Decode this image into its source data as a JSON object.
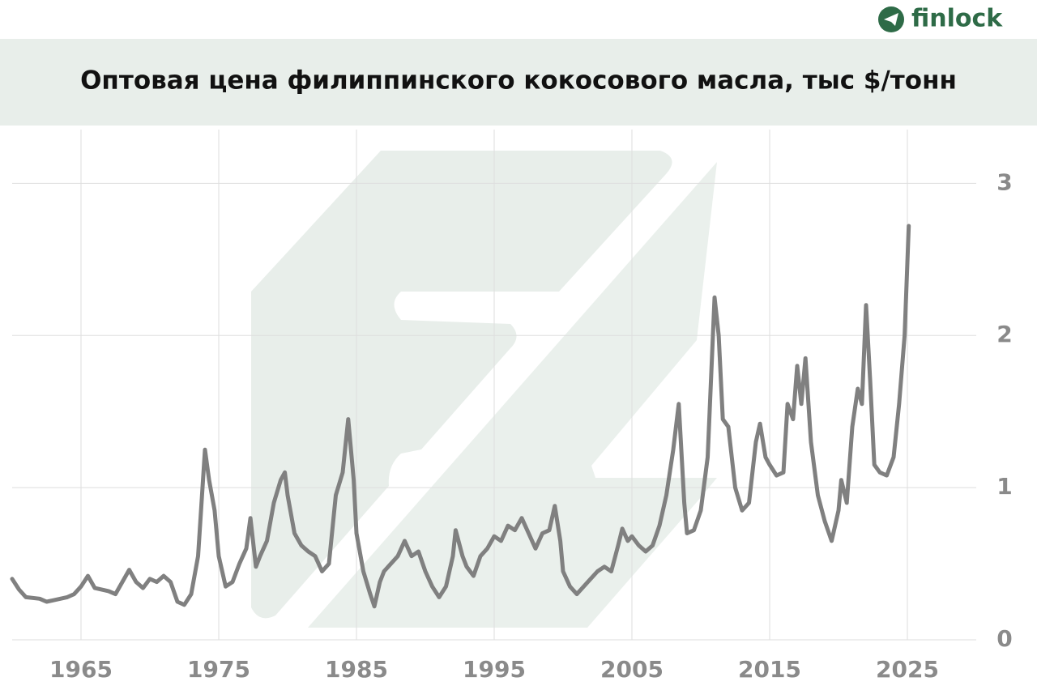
{
  "brand": "finlock",
  "chart_data": {
    "type": "line",
    "title": "Оптовая цена филиппинского кокосового масла, тыс $/тонн",
    "x": [
      1960.0,
      1960.5,
      1961,
      1962,
      1962.5,
      1963,
      1964,
      1964.5,
      1965,
      1965.5,
      1966,
      1967,
      1967.5,
      1968,
      1968.5,
      1969,
      1969.5,
      1970,
      1970.5,
      1971,
      1971.5,
      1972,
      1972.5,
      1973,
      1973.5,
      1974,
      1974.3,
      1974.7,
      1975,
      1975.5,
      1976,
      1976.5,
      1977,
      1977.3,
      1977.7,
      1978,
      1978.5,
      1979,
      1979.5,
      1979.8,
      1980,
      1980.5,
      1981,
      1981.5,
      1982,
      1982.5,
      1983,
      1983.5,
      1984,
      1984.4,
      1984.8,
      1985,
      1985.5,
      1986,
      1986.3,
      1986.7,
      1987,
      1987.5,
      1988,
      1988.5,
      1989,
      1989.5,
      1990,
      1990.5,
      1991,
      1991.5,
      1992,
      1992.2,
      1992.7,
      1993,
      1993.5,
      1994,
      1994.5,
      1995,
      1995.5,
      1996,
      1996.5,
      1997,
      1997.5,
      1998,
      1998.5,
      1999,
      1999.4,
      1999.8,
      2000,
      2000.5,
      2001,
      2001.5,
      2002,
      2002.5,
      2003,
      2003.5,
      2004,
      2004.3,
      2004.7,
      2005,
      2005.5,
      2006,
      2006.5,
      2007,
      2007.5,
      2008,
      2008.4,
      2008.8,
      2009,
      2009.5,
      2010,
      2010.5,
      2011,
      2011.3,
      2011.6,
      2012,
      2012.5,
      2013,
      2013.5,
      2014,
      2014.3,
      2014.7,
      2015,
      2015.5,
      2016,
      2016.3,
      2016.7,
      2017,
      2017.3,
      2017.6,
      2018,
      2018.5,
      2019,
      2019.5,
      2020,
      2020.2,
      2020.6,
      2021,
      2021.4,
      2021.7,
      2022,
      2022.3,
      2022.6,
      2023,
      2023.5,
      2024,
      2024.4,
      2024.8,
      2025.1
    ],
    "series": [
      {
        "color": "#808080",
        "values": [
          0.4,
          0.33,
          0.28,
          0.27,
          0.25,
          0.26,
          0.28,
          0.3,
          0.35,
          0.42,
          0.34,
          0.32,
          0.3,
          0.38,
          0.46,
          0.38,
          0.34,
          0.4,
          0.38,
          0.42,
          0.38,
          0.25,
          0.23,
          0.3,
          0.55,
          1.25,
          1.05,
          0.85,
          0.55,
          0.35,
          0.38,
          0.5,
          0.6,
          0.8,
          0.48,
          0.55,
          0.65,
          0.9,
          1.05,
          1.1,
          0.95,
          0.7,
          0.62,
          0.58,
          0.55,
          0.45,
          0.5,
          0.95,
          1.1,
          1.45,
          1.05,
          0.7,
          0.45,
          0.3,
          0.22,
          0.38,
          0.45,
          0.5,
          0.55,
          0.65,
          0.55,
          0.58,
          0.45,
          0.35,
          0.28,
          0.35,
          0.55,
          0.72,
          0.55,
          0.48,
          0.42,
          0.55,
          0.6,
          0.68,
          0.65,
          0.75,
          0.72,
          0.8,
          0.7,
          0.6,
          0.7,
          0.72,
          0.88,
          0.65,
          0.45,
          0.35,
          0.3,
          0.35,
          0.4,
          0.45,
          0.48,
          0.45,
          0.62,
          0.73,
          0.65,
          0.68,
          0.62,
          0.58,
          0.62,
          0.75,
          0.95,
          1.25,
          1.55,
          0.9,
          0.7,
          0.72,
          0.85,
          1.2,
          2.25,
          2.0,
          1.45,
          1.4,
          1.0,
          0.85,
          0.9,
          1.3,
          1.42,
          1.2,
          1.15,
          1.08,
          1.1,
          1.55,
          1.45,
          1.8,
          1.55,
          1.85,
          1.3,
          0.95,
          0.78,
          0.65,
          0.85,
          1.05,
          0.9,
          1.4,
          1.65,
          1.55,
          2.2,
          1.7,
          1.15,
          1.1,
          1.08,
          1.2,
          1.55,
          2.0,
          2.72
        ]
      }
    ],
    "xlim": [
      1960,
      2030
    ],
    "ylim": [
      0,
      3.3
    ],
    "xticks": [
      1965,
      1975,
      1985,
      1995,
      2005,
      2015,
      2025
    ],
    "yticks": [
      0,
      1,
      2,
      3
    ],
    "grid": true
  }
}
